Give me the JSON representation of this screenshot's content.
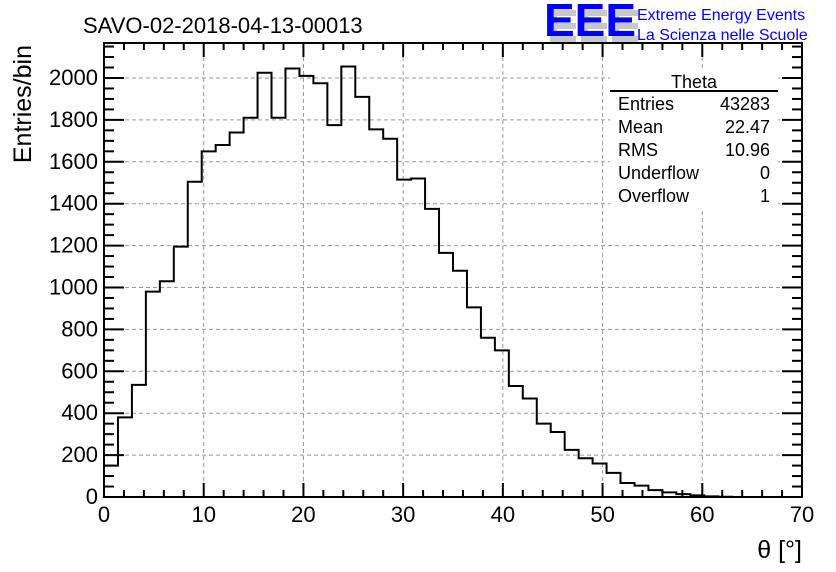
{
  "chart_data": {
    "type": "bar",
    "subtype": "step-histogram",
    "title": "SAVO-02-2018-04-13-00013",
    "xlabel": "θ [°]",
    "ylabel": "Entries/bin",
    "xlim": [
      0,
      70
    ],
    "ylim": [
      0,
      2167
    ],
    "bin_width": 1.4,
    "x_ticks": [
      0,
      10,
      20,
      30,
      40,
      50,
      60,
      70
    ],
    "y_ticks": [
      0,
      200,
      400,
      600,
      800,
      1000,
      1200,
      1400,
      1600,
      1800,
      2000
    ],
    "grid": true,
    "values": [
      150,
      380,
      535,
      980,
      1030,
      1195,
      1505,
      1650,
      1680,
      1740,
      1810,
      2025,
      1810,
      2045,
      2010,
      1975,
      1775,
      2055,
      1910,
      1755,
      1710,
      1515,
      1520,
      1375,
      1165,
      1080,
      905,
      760,
      700,
      530,
      470,
      350,
      310,
      225,
      185,
      160,
      115,
      67,
      54,
      33,
      22,
      14,
      8,
      3,
      1,
      0,
      0,
      0,
      0,
      0
    ],
    "stats_box": {
      "title": "Theta",
      "rows": [
        {
          "label": "Entries",
          "value": "43283"
        },
        {
          "label": "Mean",
          "value": "22.47"
        },
        {
          "label": "RMS",
          "value": "10.96"
        },
        {
          "label": "Underflow",
          "value": "0"
        },
        {
          "label": "Overflow",
          "value": "1"
        }
      ],
      "placement": "top-right"
    }
  },
  "logo": {
    "text": "EEE",
    "line1": "Extreme Energy Events",
    "line2": "La Scienza nelle Scuole",
    "color": "#0000ff"
  }
}
